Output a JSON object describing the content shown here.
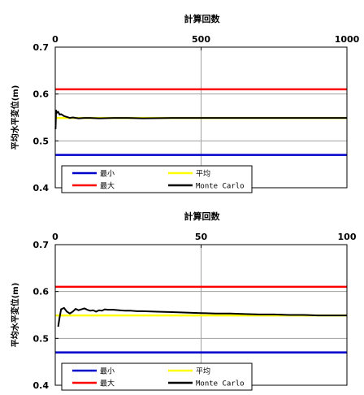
{
  "chart_data": [
    {
      "type": "line",
      "title": "計算回数",
      "ylabel": "平均水平変位(m)",
      "x_axis_position": "top",
      "xlim": [
        0,
        1000
      ],
      "ylim": [
        0.4,
        0.7
      ],
      "x_ticks": [
        0,
        500,
        1000
      ],
      "x_tick_labels": [
        "0",
        "500",
        "1000"
      ],
      "y_ticks": [
        0.4,
        0.5,
        0.6,
        0.7
      ],
      "y_tick_labels": [
        "0.4",
        "0.5",
        "0.6",
        "0.7"
      ],
      "grid": true,
      "legend_position": "bottom-left",
      "series": [
        {
          "name": "最小",
          "color": "#0000cc",
          "style": "constant",
          "x": [
            0,
            1000
          ],
          "y": [
            0.47,
            0.47
          ]
        },
        {
          "name": "平均",
          "color": "#ffff00",
          "style": "constant",
          "x": [
            0,
            1000
          ],
          "y": [
            0.549,
            0.549
          ]
        },
        {
          "name": "最大",
          "color": "#ff0000",
          "style": "constant",
          "x": [
            0,
            1000
          ],
          "y": [
            0.61,
            0.61
          ]
        },
        {
          "name": "Monte Carlo",
          "color": "#000000",
          "style": "trace",
          "x": [
            1,
            3,
            6,
            10,
            15,
            20,
            30,
            40,
            50,
            60,
            80,
            100,
            120,
            150,
            200,
            250,
            300,
            400,
            500,
            600,
            700,
            800,
            900,
            1000
          ],
          "y": [
            0.525,
            0.565,
            0.56,
            0.562,
            0.556,
            0.557,
            0.553,
            0.551,
            0.549,
            0.55,
            0.548,
            0.549,
            0.549,
            0.548,
            0.549,
            0.549,
            0.548,
            0.549,
            0.549,
            0.549,
            0.549,
            0.549,
            0.549,
            0.549
          ]
        }
      ]
    },
    {
      "type": "line",
      "title": "計算回数",
      "ylabel": "平均水平変位(m)",
      "x_axis_position": "top",
      "xlim": [
        0,
        100
      ],
      "ylim": [
        0.4,
        0.7
      ],
      "x_ticks": [
        0,
        50,
        100
      ],
      "x_tick_labels": [
        "0",
        "50",
        "100"
      ],
      "y_ticks": [
        0.4,
        0.5,
        0.6,
        0.7
      ],
      "y_tick_labels": [
        "0.4",
        "0.5",
        "0.6",
        "0.7"
      ],
      "grid": true,
      "legend_position": "bottom-left",
      "series": [
        {
          "name": "最小",
          "color": "#0000cc",
          "style": "constant",
          "x": [
            0,
            100
          ],
          "y": [
            0.47,
            0.47
          ]
        },
        {
          "name": "平均",
          "color": "#ffff00",
          "style": "constant",
          "x": [
            0,
            100
          ],
          "y": [
            0.549,
            0.549
          ]
        },
        {
          "name": "最大",
          "color": "#ff0000",
          "style": "constant",
          "x": [
            0,
            100
          ],
          "y": [
            0.61,
            0.61
          ]
        },
        {
          "name": "Monte Carlo",
          "color": "#000000",
          "style": "trace",
          "x": [
            1,
            1.5,
            2,
            3,
            4,
            5,
            6,
            7,
            8,
            9,
            10,
            11,
            12,
            13,
            14,
            15,
            16,
            17,
            18,
            19,
            20,
            22,
            24,
            26,
            28,
            30,
            35,
            40,
            45,
            50,
            55,
            60,
            65,
            70,
            75,
            80,
            85,
            90,
            95,
            100
          ],
          "y": [
            0.525,
            0.545,
            0.562,
            0.565,
            0.557,
            0.553,
            0.557,
            0.563,
            0.56,
            0.562,
            0.564,
            0.561,
            0.559,
            0.56,
            0.557,
            0.56,
            0.559,
            0.562,
            0.561,
            0.561,
            0.561,
            0.56,
            0.559,
            0.559,
            0.558,
            0.558,
            0.557,
            0.556,
            0.555,
            0.554,
            0.553,
            0.553,
            0.552,
            0.551,
            0.551,
            0.55,
            0.55,
            0.549,
            0.549,
            0.549
          ]
        }
      ]
    }
  ]
}
